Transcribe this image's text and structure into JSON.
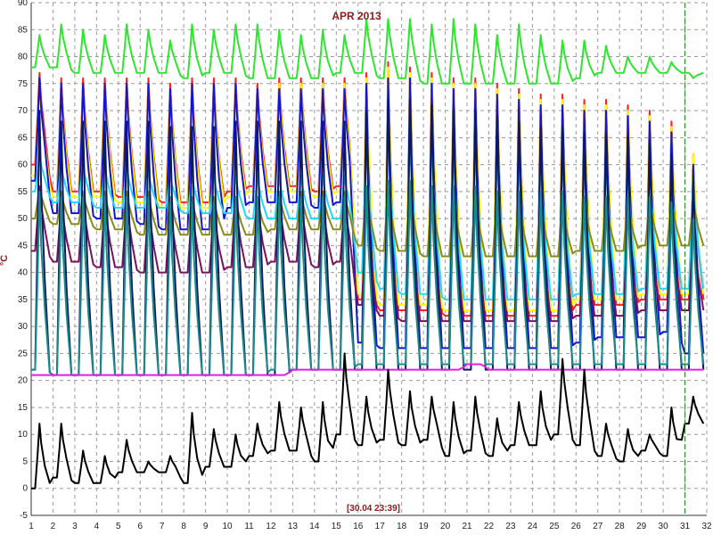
{
  "chart_data": {
    "type": "line",
    "title": "APR 2013",
    "ylabel": "°C",
    "xlabel": "",
    "timestamp": "[30.04 23:39]",
    "xlim": [
      1,
      32
    ],
    "ylim": [
      -5,
      90
    ],
    "x_ticks": [
      1,
      2,
      3,
      4,
      5,
      6,
      7,
      8,
      9,
      10,
      11,
      12,
      13,
      14,
      15,
      16,
      17,
      18,
      19,
      20,
      21,
      22,
      23,
      24,
      25,
      26,
      27,
      28,
      29,
      30,
      31,
      32
    ],
    "y_ticks": [
      -5,
      0,
      5,
      10,
      15,
      20,
      25,
      30,
      35,
      40,
      45,
      50,
      55,
      60,
      65,
      70,
      75,
      80,
      85,
      90
    ],
    "grid": true,
    "cursor_x": 31,
    "series": [
      {
        "color": "#2ee62e",
        "values": [
          78,
          78,
          77,
          77,
          77,
          77,
          77,
          76,
          77,
          77,
          76,
          76,
          76,
          76,
          77,
          77,
          76,
          76,
          75,
          75,
          75,
          75,
          75,
          75,
          75,
          76,
          77,
          77,
          77,
          77,
          77
        ],
        "peaks": [
          84,
          86,
          85,
          84,
          86,
          85,
          83,
          86,
          85,
          86,
          86,
          85,
          84,
          85,
          84,
          87,
          87,
          87,
          86,
          87,
          86,
          84,
          86,
          84,
          83,
          83,
          82,
          80,
          80,
          79,
          76
        ],
        "lows": [
          78,
          78,
          77,
          77,
          77,
          77,
          77,
          76,
          77,
          77,
          76,
          76,
          76,
          76,
          77,
          77,
          76,
          76,
          75,
          75,
          75,
          75,
          75,
          75,
          75,
          76,
          77,
          77,
          77,
          77,
          77
        ]
      },
      {
        "color": "#ff2020",
        "values": [
          60,
          55,
          55,
          55,
          54,
          54,
          53,
          53,
          53,
          55,
          56,
          56,
          56,
          55,
          56,
          35,
          33,
          33,
          33,
          32,
          32,
          32,
          32,
          32,
          32,
          34,
          34,
          34,
          35,
          35,
          35
        ],
        "peaks": [
          77,
          76,
          76,
          76,
          76,
          76,
          75,
          76,
          76,
          76,
          75,
          76,
          76,
          76,
          76,
          77,
          79,
          78,
          77,
          76,
          76,
          75,
          74,
          73,
          73,
          72,
          72,
          71,
          70,
          68,
          62
        ],
        "lows": [
          60,
          55,
          55,
          55,
          54,
          54,
          53,
          53,
          53,
          55,
          56,
          56,
          56,
          55,
          56,
          35,
          33,
          33,
          33,
          32,
          32,
          32,
          32,
          32,
          32,
          34,
          34,
          34,
          35,
          35,
          35
        ]
      },
      {
        "color": "#ffff00",
        "values": [
          58,
          54,
          54,
          54,
          53,
          53,
          52,
          52,
          52,
          54,
          55,
          55,
          55,
          54,
          55,
          36,
          34,
          34,
          34,
          33,
          33,
          33,
          33,
          33,
          33,
          35,
          35,
          35,
          36,
          36,
          36
        ],
        "peaks": [
          75,
          75,
          75,
          75,
          75,
          75,
          74,
          75,
          75,
          75,
          74,
          75,
          75,
          75,
          75,
          76,
          78,
          77,
          76,
          75,
          75,
          74,
          73,
          72,
          72,
          71,
          71,
          70,
          69,
          67,
          62
        ],
        "lows": [
          58,
          54,
          54,
          54,
          53,
          53,
          52,
          52,
          52,
          54,
          55,
          55,
          55,
          54,
          55,
          36,
          34,
          34,
          34,
          33,
          33,
          33,
          33,
          33,
          33,
          35,
          35,
          35,
          36,
          36,
          36
        ]
      },
      {
        "color": "#1515d0",
        "values": [
          57,
          51,
          51,
          50,
          50,
          49,
          48,
          48,
          48,
          52,
          53,
          53,
          53,
          52,
          53,
          27,
          26,
          26,
          26,
          26,
          26,
          26,
          26,
          26,
          26,
          27,
          28,
          28,
          28,
          29,
          25
        ],
        "peaks": [
          76,
          75,
          75,
          75,
          75,
          75,
          74,
          75,
          75,
          75,
          74,
          74,
          74,
          74,
          74,
          75,
          76,
          76,
          75,
          74,
          74,
          73,
          72,
          71,
          71,
          70,
          70,
          69,
          68,
          66,
          60
        ],
        "lows": [
          57,
          51,
          51,
          50,
          50,
          49,
          48,
          48,
          48,
          52,
          53,
          53,
          53,
          52,
          53,
          27,
          26,
          26,
          26,
          26,
          26,
          26,
          26,
          26,
          26,
          27,
          28,
          28,
          28,
          29,
          25
        ]
      },
      {
        "color": "#20d8ff",
        "values": [
          55,
          53,
          53,
          52,
          52,
          52,
          52,
          51,
          51,
          51,
          50,
          50,
          50,
          50,
          50,
          40,
          37,
          36,
          36,
          35,
          35,
          35,
          35,
          35,
          35,
          36,
          36,
          36,
          37,
          37,
          37
        ],
        "peaks": [
          62,
          60,
          60,
          60,
          60,
          59,
          58,
          58,
          58,
          58,
          58,
          58,
          58,
          58,
          58,
          64,
          66,
          66,
          65,
          64,
          64,
          63,
          62,
          62,
          62,
          61,
          61,
          60,
          60,
          59,
          58
        ],
        "lows": [
          55,
          53,
          53,
          52,
          52,
          52,
          52,
          51,
          51,
          51,
          50,
          50,
          50,
          50,
          50,
          40,
          37,
          36,
          36,
          35,
          35,
          35,
          35,
          35,
          35,
          36,
          36,
          36,
          37,
          37,
          37
        ]
      },
      {
        "color": "#8a8a1a",
        "values": [
          50,
          49,
          49,
          48,
          48,
          47,
          47,
          47,
          47,
          47,
          47,
          48,
          48,
          48,
          48,
          45,
          44,
          44,
          43,
          43,
          43,
          43,
          43,
          43,
          43,
          44,
          44,
          44,
          45,
          45,
          45
        ],
        "peaks": [
          56,
          55,
          55,
          55,
          55,
          55,
          54,
          54,
          54,
          54,
          54,
          55,
          55,
          55,
          55,
          56,
          56,
          56,
          56,
          55,
          55,
          55,
          55,
          54,
          54,
          54,
          54,
          54,
          54,
          54,
          54
        ],
        "lows": [
          50,
          49,
          49,
          48,
          48,
          47,
          47,
          47,
          47,
          47,
          47,
          48,
          48,
          48,
          48,
          45,
          44,
          44,
          43,
          43,
          43,
          43,
          43,
          43,
          43,
          44,
          44,
          44,
          45,
          45,
          45
        ]
      },
      {
        "color": "#7a1060",
        "values": [
          44,
          42,
          42,
          41,
          41,
          40,
          40,
          40,
          40,
          41,
          41,
          42,
          42,
          41,
          42,
          34,
          32,
          31,
          31,
          31,
          31,
          31,
          31,
          31,
          31,
          32,
          32,
          32,
          33,
          33,
          33
        ],
        "peaks": [
          56,
          54,
          54,
          54,
          54,
          54,
          53,
          53,
          53,
          54,
          54,
          54,
          54,
          54,
          54,
          55,
          56,
          56,
          55,
          55,
          55,
          54,
          54,
          54,
          54,
          53,
          53,
          53,
          53,
          52,
          50
        ],
        "lows": [
          44,
          42,
          42,
          41,
          41,
          40,
          40,
          40,
          40,
          41,
          41,
          42,
          42,
          41,
          42,
          34,
          32,
          31,
          31,
          31,
          31,
          31,
          31,
          31,
          31,
          32,
          32,
          32,
          33,
          33,
          33
        ]
      },
      {
        "color": "#0b1a60",
        "values": [
          22,
          21,
          21,
          21,
          21,
          21,
          21,
          21,
          21,
          21,
          21,
          21,
          22,
          22,
          22,
          22,
          22,
          22,
          22,
          22,
          22,
          22,
          22,
          22,
          22,
          22,
          22,
          22,
          22,
          22,
          22
        ],
        "peaks": [
          70,
          68,
          68,
          68,
          68,
          68,
          67,
          67,
          67,
          68,
          68,
          68,
          68,
          68,
          68,
          70,
          72,
          72,
          71,
          70,
          70,
          69,
          68,
          67,
          67,
          66,
          66,
          65,
          64,
          62,
          58
        ],
        "lows": [
          22,
          21,
          21,
          21,
          21,
          21,
          21,
          21,
          21,
          21,
          21,
          21,
          22,
          22,
          22,
          22,
          22,
          22,
          22,
          22,
          22,
          22,
          22,
          22,
          22,
          22,
          22,
          22,
          22,
          22,
          22
        ]
      },
      {
        "color": "#1a8a8a",
        "values": [
          22,
          21,
          21,
          21,
          21,
          21,
          21,
          21,
          21,
          21,
          21,
          22,
          22,
          22,
          22,
          23,
          23,
          23,
          23,
          23,
          23,
          23,
          23,
          23,
          23,
          23,
          23,
          23,
          23,
          23,
          23
        ],
        "peaks": [
          55,
          54,
          54,
          54,
          54,
          54,
          53,
          53,
          53,
          54,
          54,
          54,
          54,
          54,
          54,
          56,
          57,
          57,
          56,
          56,
          56,
          55,
          55,
          55,
          55,
          54,
          54,
          54,
          54,
          53,
          50
        ],
        "lows": [
          22,
          21,
          21,
          21,
          21,
          21,
          21,
          21,
          21,
          21,
          21,
          22,
          22,
          22,
          22,
          23,
          23,
          23,
          23,
          23,
          23,
          23,
          23,
          23,
          23,
          23,
          23,
          23,
          23,
          23,
          23
        ]
      },
      {
        "color": "#e020e0",
        "values": [
          21,
          21,
          21,
          21,
          21,
          21,
          21,
          21,
          21,
          21,
          21,
          21,
          22,
          22,
          22,
          22,
          22,
          22,
          22,
          22,
          23,
          22,
          22,
          22,
          22,
          22,
          22,
          22,
          22,
          22,
          22
        ],
        "peaks": [
          21,
          21,
          21,
          21,
          21,
          21,
          21,
          21,
          21,
          21,
          21,
          21,
          22,
          22,
          22,
          22,
          22,
          22,
          22,
          22,
          23,
          22,
          22,
          22,
          22,
          22,
          22,
          22,
          22,
          22,
          22
        ],
        "lows": [
          21,
          21,
          21,
          21,
          21,
          21,
          21,
          21,
          21,
          21,
          21,
          21,
          22,
          22,
          22,
          22,
          22,
          22,
          22,
          22,
          23,
          22,
          22,
          22,
          22,
          22,
          22,
          22,
          22,
          22,
          22
        ]
      },
      {
        "color": "#000000",
        "values": [
          0,
          2,
          1,
          1,
          3,
          3,
          3,
          1,
          4,
          4,
          6,
          7,
          7,
          5,
          10,
          8,
          9,
          8,
          9,
          6,
          7,
          6,
          8,
          8,
          10,
          8,
          6,
          5,
          7,
          6,
          12
        ],
        "peaks": [
          12,
          12,
          7,
          6,
          9,
          5,
          6,
          14,
          11,
          10,
          12,
          16,
          15,
          16,
          25,
          17,
          22,
          18,
          17,
          16,
          17,
          13,
          16,
          18,
          24,
          22,
          12,
          11,
          10,
          15,
          17
        ],
        "lows": [
          0,
          2,
          1,
          1,
          3,
          3,
          3,
          1,
          4,
          4,
          6,
          7,
          7,
          5,
          10,
          8,
          9,
          8,
          9,
          6,
          7,
          6,
          8,
          8,
          10,
          8,
          6,
          5,
          7,
          6,
          12
        ]
      }
    ]
  }
}
